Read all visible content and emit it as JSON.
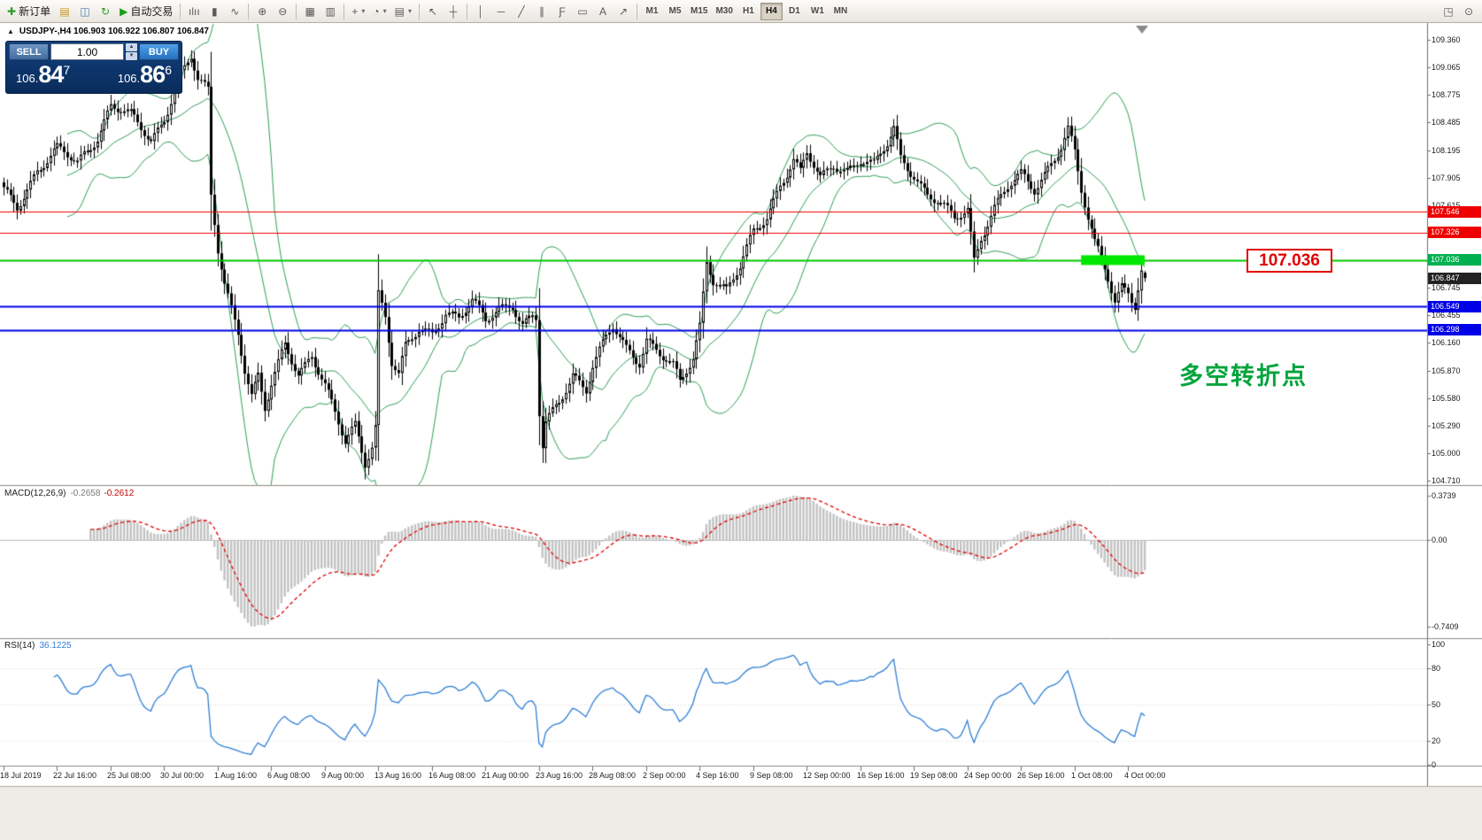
{
  "toolbar": {
    "items": [
      {
        "name": "new-order-button",
        "glyph": "✚",
        "glyph_color": "#2c9c2c",
        "label": "新订单"
      },
      {
        "name": "market-watch-button",
        "glyph": "▤",
        "glyph_color": "#c89018"
      },
      {
        "name": "data-window-button",
        "glyph": "◫",
        "glyph_color": "#4a78b0"
      },
      {
        "name": "refresh-button",
        "glyph": "↻",
        "glyph_color": "#2c9c2c"
      },
      {
        "name": "autotrading-button",
        "glyph": "▶",
        "glyph_color": "#18a018",
        "label": "自动交易"
      },
      {
        "sep": true
      },
      {
        "name": "bar-chart-type-button",
        "glyph": "ılıı"
      },
      {
        "name": "candlestick-type-button",
        "glyph": "▮"
      },
      {
        "name": "line-chart-type-button",
        "glyph": "∿"
      },
      {
        "sep": true
      },
      {
        "name": "zoom-in-button",
        "glyph": "⊕"
      },
      {
        "name": "zoom-out-button",
        "glyph": "⊖"
      },
      {
        "sep": true
      },
      {
        "name": "tile-windows-button",
        "glyph": "▦"
      },
      {
        "name": "cascade-windows-button",
        "glyph": "▥"
      },
      {
        "sep": true
      },
      {
        "name": "new-chart-button",
        "glyph": "+",
        "dropdown": true
      },
      {
        "name": "profiles-button",
        "glyph": "◔",
        "dropdown": true
      },
      {
        "name": "templates-button",
        "glyph": "▤",
        "dropdown": true
      },
      {
        "sep": true
      },
      {
        "name": "cursor-tool-button",
        "glyph": "↖"
      },
      {
        "name": "crosshair-tool-button",
        "glyph": "┼"
      },
      {
        "sep": true
      },
      {
        "name": "vertical-line-tool-button",
        "glyph": "│"
      },
      {
        "name": "horizontal-line-tool-button",
        "glyph": "─"
      },
      {
        "name": "trendline-tool-button",
        "glyph": "╱"
      },
      {
        "name": "channel-tool-button",
        "glyph": "∥"
      },
      {
        "name": "fibonacci-tool-button",
        "glyph": "Ƒ"
      },
      {
        "name": "shapes-tool-button",
        "glyph": "▭"
      },
      {
        "name": "text-tool-button",
        "glyph": "A"
      },
      {
        "name": "arrows-tool-button",
        "glyph": "↗"
      },
      {
        "sep": true
      }
    ],
    "periods": [
      "M1",
      "M5",
      "M15",
      "M30",
      "H1",
      "H4",
      "D1",
      "W1",
      "MN"
    ],
    "active_period": "H4",
    "right_items": [
      {
        "name": "chart-window-button",
        "glyph": "◳"
      },
      {
        "name": "search-button",
        "glyph": "⊙"
      }
    ]
  },
  "chart": {
    "collapse_icon": "▲",
    "info_line": "USDJPY-,H4 106.903 106.922 106.807 106.847"
  },
  "trade_panel": {
    "sell_label": "SELL",
    "buy_label": "BUY",
    "volume": "1.00",
    "spin_up": "▲",
    "spin_down": "▼",
    "sell_price": {
      "prefix": "106.",
      "big": "84",
      "sup": "7"
    },
    "buy_price": {
      "prefix": "106.",
      "big": "86",
      "sup": "6"
    }
  },
  "annotations": {
    "price_box": "107.036",
    "turning_point": "多空转折点"
  },
  "chart_data": {
    "type": "candlestick",
    "symbol": "USDJPY-",
    "timeframe": "H4",
    "current_bar_ohlc": {
      "open": 106.903,
      "high": 106.922,
      "low": 106.807,
      "close": 106.847
    },
    "scale_top_price": 109.36,
    "scale_bottom_price": 104.71,
    "y_axis_labels": [
      "109.360",
      "109.065",
      "108.775",
      "108.485",
      "108.195",
      "107.905",
      "107.615",
      "107.326",
      "107.036",
      "106.745",
      "106.455",
      "106.160",
      "105.870",
      "105.580",
      "105.290",
      "105.000",
      "104.710"
    ],
    "bars_total": 342,
    "close_anchors": [
      [
        0,
        107.75
      ],
      [
        4,
        107.6
      ],
      [
        10,
        108.0
      ],
      [
        16,
        108.2
      ],
      [
        22,
        108.05
      ],
      [
        28,
        108.35
      ],
      [
        32,
        108.68
      ],
      [
        38,
        108.55
      ],
      [
        44,
        108.28
      ],
      [
        48,
        108.55
      ],
      [
        52,
        108.95
      ],
      [
        56,
        109.18
      ],
      [
        58,
        108.92
      ],
      [
        61,
        108.8
      ],
      [
        62,
        107.7
      ],
      [
        64,
        107.15
      ],
      [
        66,
        106.8
      ],
      [
        68,
        106.55
      ],
      [
        70,
        106.3
      ],
      [
        72,
        105.9
      ],
      [
        74,
        105.6
      ],
      [
        76,
        105.8
      ],
      [
        78,
        105.45
      ],
      [
        80,
        105.7
      ],
      [
        84,
        106.15
      ],
      [
        88,
        105.85
      ],
      [
        92,
        106.05
      ],
      [
        96,
        105.7
      ],
      [
        100,
        105.3
      ],
      [
        102,
        105.1
      ],
      [
        105,
        105.3
      ],
      [
        108,
        104.92
      ],
      [
        110,
        105.1
      ],
      [
        111,
        105.3
      ],
      [
        112,
        106.7
      ],
      [
        114,
        106.45
      ],
      [
        116,
        105.95
      ],
      [
        118,
        105.8
      ],
      [
        120,
        106.1
      ],
      [
        124,
        106.3
      ],
      [
        128,
        106.28
      ],
      [
        132,
        106.5
      ],
      [
        136,
        106.42
      ],
      [
        140,
        106.58
      ],
      [
        144,
        106.4
      ],
      [
        148,
        106.55
      ],
      [
        152,
        106.58
      ],
      [
        155,
        106.35
      ],
      [
        158,
        106.42
      ],
      [
        159,
        106.4
      ],
      [
        160,
        105.4
      ],
      [
        161,
        105.05
      ],
      [
        162,
        105.3
      ],
      [
        166,
        105.55
      ],
      [
        170,
        105.85
      ],
      [
        174,
        105.68
      ],
      [
        176,
        105.92
      ],
      [
        180,
        106.2
      ],
      [
        182,
        106.32
      ],
      [
        186,
        106.1
      ],
      [
        190,
        105.98
      ],
      [
        192,
        106.22
      ],
      [
        196,
        106.05
      ],
      [
        200,
        105.9
      ],
      [
        202,
        105.72
      ],
      [
        206,
        106.0
      ],
      [
        208,
        106.35
      ],
      [
        210,
        107.05
      ],
      [
        212,
        106.85
      ],
      [
        216,
        106.72
      ],
      [
        220,
        106.95
      ],
      [
        224,
        107.32
      ],
      [
        228,
        107.5
      ],
      [
        232,
        107.85
      ],
      [
        236,
        108.1
      ],
      [
        238,
        107.95
      ],
      [
        240,
        108.15
      ],
      [
        244,
        107.88
      ],
      [
        248,
        108.05
      ],
      [
        252,
        108.0
      ],
      [
        256,
        108.1
      ],
      [
        260,
        108.02
      ],
      [
        264,
        108.25
      ],
      [
        266,
        108.42
      ],
      [
        268,
        108.12
      ],
      [
        272,
        107.95
      ],
      [
        276,
        107.72
      ],
      [
        280,
        107.62
      ],
      [
        284,
        107.45
      ],
      [
        288,
        107.58
      ],
      [
        290,
        107.05
      ],
      [
        292,
        107.3
      ],
      [
        296,
        107.6
      ],
      [
        300,
        107.8
      ],
      [
        304,
        107.92
      ],
      [
        308,
        107.78
      ],
      [
        312,
        108.02
      ],
      [
        316,
        108.25
      ],
      [
        318,
        108.42
      ],
      [
        320,
        108.15
      ],
      [
        322,
        107.75
      ],
      [
        324,
        107.45
      ],
      [
        326,
        107.2
      ],
      [
        328,
        107.08
      ],
      [
        330,
        106.88
      ],
      [
        332,
        106.62
      ],
      [
        334,
        106.78
      ],
      [
        336,
        106.72
      ],
      [
        338,
        106.55
      ],
      [
        340,
        106.88
      ],
      [
        341,
        106.847
      ]
    ],
    "horizontal_levels": [
      {
        "price": 107.546,
        "color": "#ee0000",
        "width": 1
      },
      {
        "price": 107.326,
        "color": "#ee0000",
        "width": 1
      },
      {
        "price": 107.036,
        "color": "#00c800",
        "width": 2,
        "highlight": {
          "from_bar": 322,
          "to_bar": 341,
          "color": "#00e800",
          "thickness": 11
        }
      },
      {
        "price": 106.549,
        "color": "#0000e8",
        "width": 2
      },
      {
        "price": 106.298,
        "color": "#0000e8",
        "width": 2
      }
    ],
    "price_tags": [
      {
        "text": "107.546",
        "bg": "#ee0000",
        "price": 107.546
      },
      {
        "text": "107.326",
        "bg": "#ee0000",
        "price": 107.326
      },
      {
        "text": "107.036",
        "bg": "#00b050",
        "price": 107.036
      },
      {
        "text": "106.847",
        "bg": "#222222",
        "price": 106.847
      },
      {
        "text": "106.549",
        "bg": "#0000e8",
        "price": 106.549
      },
      {
        "text": "106.298",
        "bg": "#0000e8",
        "price": 106.298
      }
    ],
    "indicators": {
      "bollinger": {
        "period": 20,
        "deviation": 2,
        "color": "#2f9e57"
      },
      "macd": {
        "label": "MACD(12,26,9)",
        "value_main": "-0.2658",
        "value_signal": "-0.2612",
        "scale_labels": [
          "0.3739",
          "0.00",
          "-0.7409"
        ],
        "histogram_color": "#c2c2c2",
        "signal_color": "#e00000"
      },
      "rsi": {
        "label": "RSI(14)",
        "value": "36.1225",
        "scale_labels": [
          "100",
          "80",
          "50",
          "20",
          "0"
        ],
        "levels": [
          80,
          50,
          20
        ],
        "color": "#2e7fd6"
      }
    },
    "time_axis_labels": [
      {
        "bar": 0,
        "text": "18 Jul 2019"
      },
      {
        "bar": 16,
        "text": "22 Jul 16:00"
      },
      {
        "bar": 32,
        "text": "25 Jul 08:00"
      },
      {
        "bar": 48,
        "text": "30 Jul 00:00"
      },
      {
        "bar": 64,
        "text": "1 Aug 16:00"
      },
      {
        "bar": 80,
        "text": "6 Aug 08:00"
      },
      {
        "bar": 96,
        "text": "9 Aug 00:00"
      },
      {
        "bar": 112,
        "text": "13 Aug 16:00"
      },
      {
        "bar": 128,
        "text": "16 Aug 08:00"
      },
      {
        "bar": 144,
        "text": "21 Aug 00:00"
      },
      {
        "bar": 160,
        "text": "23 Aug 16:00"
      },
      {
        "bar": 176,
        "text": "28 Aug 08:00"
      },
      {
        "bar": 192,
        "text": "2 Sep 00:00"
      },
      {
        "bar": 208,
        "text": "4 Sep 16:00"
      },
      {
        "bar": 224,
        "text": "9 Sep 08:00"
      },
      {
        "bar": 240,
        "text": "12 Sep 00:00"
      },
      {
        "bar": 256,
        "text": "16 Sep 16:00"
      },
      {
        "bar": 272,
        "text": "19 Sep 08:00"
      },
      {
        "bar": 288,
        "text": "24 Sep 00:00"
      },
      {
        "bar": 304,
        "text": "26 Sep 16:00"
      },
      {
        "bar": 320,
        "text": "1 Oct 08:00"
      },
      {
        "bar": 336,
        "text": "4 Oct 00:00"
      }
    ]
  }
}
